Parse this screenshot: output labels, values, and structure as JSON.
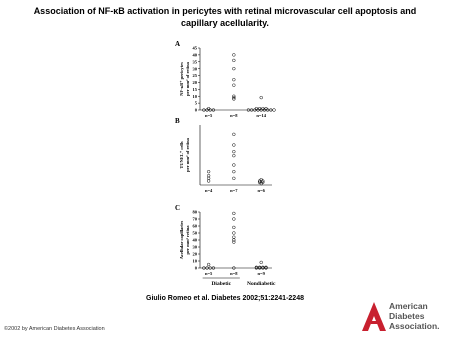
{
  "title": [
    "Association of NF-κB activation in pericytes with retinal microvascular cell apoptosis and",
    "capillary acellularity."
  ],
  "citation": "Giulio Romeo et al. Diabetes 2002;51:2241-2248",
  "copyright": "©2002 by American Diabetes Association",
  "logo_text": [
    "American",
    "Diabetes",
    "Association."
  ],
  "chart_data": [
    {
      "type": "scatter",
      "panel": "A",
      "y_label": [
        "NF-κB⁺ pericytes",
        "per mm² of retina"
      ],
      "ylim": [
        0,
        45
      ],
      "yticks": [
        0,
        5,
        10,
        15,
        20,
        25,
        30,
        35,
        40,
        45
      ],
      "categories": [
        "n=5",
        "n=8",
        "n=14"
      ],
      "groups": [
        [
          0,
          0,
          1,
          0,
          0
        ],
        [
          40,
          36,
          30,
          22,
          18,
          10,
          9,
          8
        ],
        [
          9,
          1,
          1,
          1,
          1,
          0,
          0,
          0,
          0,
          0,
          0,
          0,
          0,
          0
        ]
      ]
    },
    {
      "type": "scatter",
      "panel": "B",
      "y_label": [
        "TUNEL⁺ cells",
        "per mm² of retina"
      ],
      "ylim": [
        0,
        45
      ],
      "categories": [
        "n=4",
        "n=7",
        "n=6"
      ],
      "groups": [
        [
          10,
          7,
          5,
          3
        ],
        [
          38,
          30,
          25,
          22,
          15,
          10,
          5
        ],
        [
          4,
          3,
          3,
          2,
          2,
          1
        ]
      ]
    },
    {
      "type": "scatter",
      "panel": "C",
      "y_label": [
        "Acellular capillaries",
        "per mm² retina"
      ],
      "ylim": [
        0,
        80
      ],
      "yticks": [
        0,
        10,
        20,
        30,
        40,
        50,
        60,
        70,
        80
      ],
      "categories": [
        "n=5",
        "n=8",
        "n=9"
      ],
      "groups": [
        [
          5,
          0,
          0,
          0,
          0
        ],
        [
          78,
          70,
          58,
          50,
          44,
          40,
          37,
          0
        ],
        [
          8,
          1,
          1,
          1,
          1,
          0,
          0,
          0,
          0
        ]
      ],
      "x_groups": [
        "Diabetic",
        "Nondiabetic"
      ]
    }
  ]
}
